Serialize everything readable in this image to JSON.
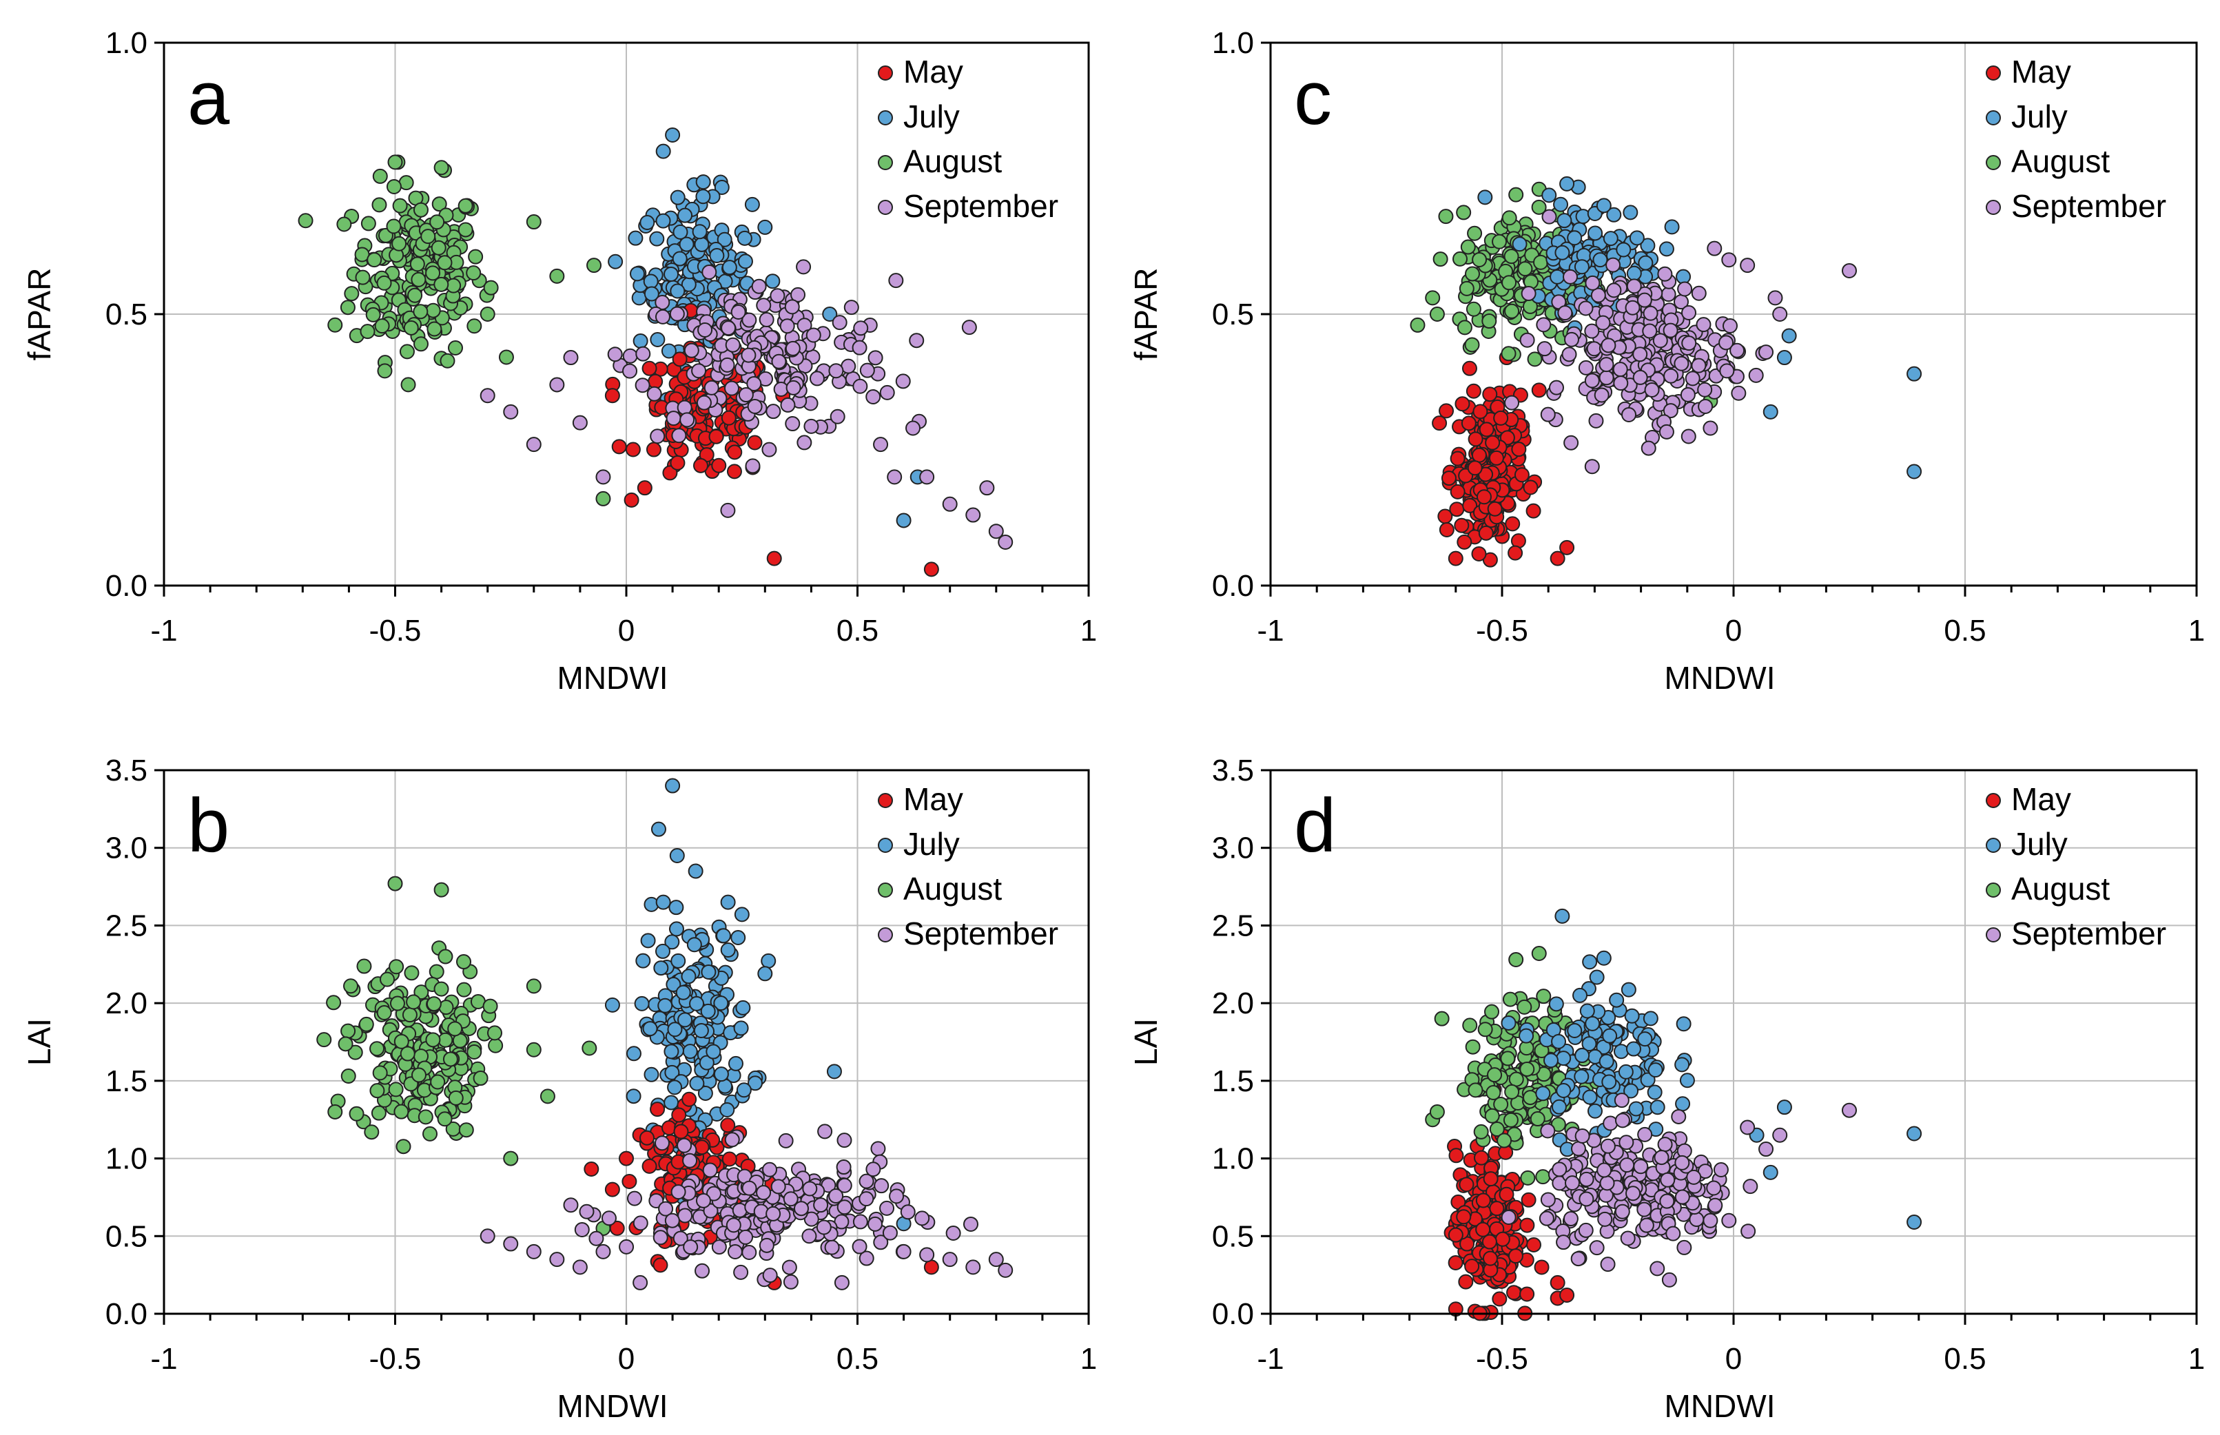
{
  "figure": {
    "description_labels": [
      "a",
      "b",
      "c",
      "d"
    ]
  },
  "legend_colors": {
    "May": "#e31a1c",
    "July": "#5ba4d6",
    "August": "#6fbf6a",
    "September": "#c39bd8",
    "stroke": "#222222"
  },
  "chart_data": [
    {
      "type": "scatter",
      "panel": "a",
      "xlabel": "MNDWI",
      "ylabel": "fAPAR",
      "xlim": [
        -1,
        1
      ],
      "ylim": [
        0,
        1
      ],
      "xticks": [
        "-1",
        "-0.5",
        "0",
        "0.5",
        "1"
      ],
      "yticks": [
        "0.0",
        "0.5",
        "1.0"
      ],
      "ytick_values": [
        0,
        0.5,
        1.0
      ],
      "legend": [
        "May",
        "July",
        "August",
        "September"
      ],
      "legend_position": "top-right",
      "grid": true,
      "series": [
        {
          "name": "May",
          "cx": 0.17,
          "sx": 0.07,
          "cy": 0.31,
          "sy": 0.06,
          "n": 120,
          "extra": [
            [
              0.32,
              0.05
            ],
            [
              0.66,
              0.03
            ],
            [
              -0.03,
              0.35
            ],
            [
              0.05,
              0.4
            ],
            [
              0.04,
              0.18
            ]
          ]
        },
        {
          "name": "July",
          "cx": 0.15,
          "sx": 0.06,
          "cy": 0.58,
          "sy": 0.07,
          "n": 160,
          "extra": [
            [
              0.1,
              0.83
            ],
            [
              0.08,
              0.8
            ],
            [
              0.6,
              0.12
            ],
            [
              0.63,
              0.2
            ],
            [
              0.44,
              0.5
            ],
            [
              0.3,
              0.66
            ],
            [
              0.02,
              0.64
            ]
          ]
        },
        {
          "name": "August",
          "cx": -0.45,
          "sx": 0.07,
          "cy": 0.58,
          "sy": 0.08,
          "n": 200,
          "extra": [
            [
              -0.5,
              0.78
            ],
            [
              -0.4,
              0.77
            ],
            [
              -0.2,
              0.67
            ],
            [
              -0.15,
              0.57
            ],
            [
              -0.07,
              0.59
            ],
            [
              -0.05,
              0.16
            ],
            [
              -0.3,
              0.5
            ],
            [
              -0.63,
              0.48
            ]
          ]
        },
        {
          "name": "September",
          "cx": 0.3,
          "sx": 0.14,
          "cy": 0.42,
          "sy": 0.07,
          "n": 200,
          "extra": [
            [
              0.82,
              0.08
            ],
            [
              0.8,
              0.1
            ],
            [
              0.75,
              0.13
            ],
            [
              0.7,
              0.15
            ],
            [
              0.65,
              0.2
            ],
            [
              0.58,
              0.2
            ],
            [
              0.55,
              0.26
            ],
            [
              -0.25,
              0.32
            ],
            [
              -0.3,
              0.35
            ],
            [
              -0.2,
              0.26
            ],
            [
              -0.15,
              0.37
            ],
            [
              -0.1,
              0.3
            ],
            [
              -0.05,
              0.2
            ],
            [
              0.62,
              0.29
            ],
            [
              0.78,
              0.18
            ],
            [
              -0.12,
              0.42
            ]
          ]
        }
      ]
    },
    {
      "type": "scatter",
      "panel": "b",
      "xlabel": "MNDWI",
      "ylabel": "LAI",
      "xlim": [
        -1,
        1
      ],
      "ylim": [
        0,
        3.5
      ],
      "xticks": [
        "-1",
        "-0.5",
        "0",
        "0.5",
        "1"
      ],
      "yticks": [
        "0.0",
        "0.5",
        "1.0",
        "1.5",
        "2.0",
        "2.5",
        "3.0",
        "3.5"
      ],
      "ytick_values": [
        0,
        0.5,
        1.0,
        1.5,
        2.0,
        2.5,
        3.0,
        3.5
      ],
      "legend": [
        "May",
        "July",
        "August",
        "September"
      ],
      "legend_position": "top-right",
      "grid": true,
      "series": [
        {
          "name": "May",
          "cx": 0.15,
          "sx": 0.06,
          "cy": 0.9,
          "sy": 0.2,
          "n": 120,
          "extra": [
            [
              0.32,
              0.2
            ],
            [
              0.66,
              0.3
            ],
            [
              -0.03,
              0.8
            ],
            [
              0.0,
              1.0
            ],
            [
              0.05,
              0.95
            ]
          ]
        },
        {
          "name": "July",
          "cx": 0.15,
          "sx": 0.06,
          "cy": 1.85,
          "sy": 0.35,
          "n": 170,
          "extra": [
            [
              0.1,
              3.4
            ],
            [
              0.07,
              3.12
            ],
            [
              0.11,
              2.95
            ],
            [
              0.15,
              2.85
            ],
            [
              0.45,
              1.56
            ],
            [
              0.6,
              0.58
            ],
            [
              0.3,
              2.19
            ],
            [
              0.22,
              2.65
            ],
            [
              0.08,
              2.65
            ]
          ]
        },
        {
          "name": "August",
          "cx": -0.45,
          "sx": 0.07,
          "cy": 1.7,
          "sy": 0.28,
          "n": 200,
          "extra": [
            [
              -0.5,
              2.77
            ],
            [
              -0.4,
              2.73
            ],
            [
              -0.2,
              2.11
            ],
            [
              -0.2,
              1.7
            ],
            [
              -0.17,
              1.4
            ],
            [
              -0.08,
              1.71
            ],
            [
              -0.05,
              0.55
            ],
            [
              -0.25,
              1.0
            ],
            [
              -0.63,
              1.3
            ]
          ]
        },
        {
          "name": "September",
          "cx": 0.3,
          "sx": 0.15,
          "cy": 0.65,
          "sy": 0.18,
          "n": 220,
          "extra": [
            [
              0.82,
              0.28
            ],
            [
              0.8,
              0.35
            ],
            [
              0.75,
              0.3
            ],
            [
              0.7,
              0.35
            ],
            [
              0.65,
              0.38
            ],
            [
              0.6,
              0.4
            ],
            [
              -0.3,
              0.5
            ],
            [
              -0.25,
              0.45
            ],
            [
              -0.2,
              0.4
            ],
            [
              -0.15,
              0.35
            ],
            [
              -0.1,
              0.3
            ],
            [
              -0.05,
              0.4
            ],
            [
              0.03,
              0.2
            ],
            [
              -0.12,
              0.7
            ]
          ]
        }
      ]
    },
    {
      "type": "scatter",
      "panel": "c",
      "xlabel": "MNDWI",
      "ylabel": "fAPAR",
      "xlim": [
        -1,
        1
      ],
      "ylim": [
        0,
        1
      ],
      "xticks": [
        "-1",
        "-0.5",
        "0",
        "0.5",
        "1"
      ],
      "yticks": [
        "0.0",
        "0.5",
        "1.0"
      ],
      "ytick_values": [
        0,
        0.5,
        1.0
      ],
      "legend": [
        "May",
        "July",
        "August",
        "September"
      ],
      "legend_position": "top-right",
      "grid": true,
      "series": [
        {
          "name": "May",
          "cx": -0.53,
          "sx": 0.035,
          "cy": 0.21,
          "sy": 0.07,
          "n": 230,
          "extra": [
            [
              -0.38,
              0.05
            ],
            [
              -0.36,
              0.07
            ],
            [
              -0.6,
              0.05
            ],
            [
              -0.57,
              0.4
            ],
            [
              -0.49,
              0.42
            ],
            [
              -0.42,
              0.36
            ]
          ]
        },
        {
          "name": "July",
          "cx": -0.3,
          "sx": 0.07,
          "cy": 0.61,
          "sy": 0.05,
          "n": 110,
          "extra": [
            [
              0.39,
              0.39
            ],
            [
              0.39,
              0.21
            ],
            [
              0.12,
              0.46
            ],
            [
              0.11,
              0.42
            ],
            [
              0.08,
              0.32
            ],
            [
              -0.36,
              0.74
            ],
            [
              -0.28,
              0.7
            ]
          ]
        },
        {
          "name": "August",
          "cx": -0.45,
          "sx": 0.07,
          "cy": 0.57,
          "sy": 0.06,
          "n": 180,
          "extra": [
            [
              -0.65,
              0.53
            ],
            [
              -0.64,
              0.5
            ],
            [
              -0.47,
              0.72
            ],
            [
              -0.42,
              0.73
            ],
            [
              -0.05,
              0.34
            ]
          ]
        },
        {
          "name": "September",
          "cx": -0.2,
          "sx": 0.1,
          "cy": 0.43,
          "sy": 0.07,
          "n": 230,
          "extra": [
            [
              0.25,
              0.58
            ],
            [
              0.1,
              0.5
            ],
            [
              0.09,
              0.53
            ],
            [
              0.07,
              0.43
            ],
            [
              0.03,
              0.59
            ],
            [
              -0.01,
              0.6
            ],
            [
              -0.05,
              0.29
            ]
          ]
        }
      ]
    },
    {
      "type": "scatter",
      "panel": "d",
      "xlabel": "MNDWI",
      "ylabel": "LAI",
      "xlim": [
        -1,
        1
      ],
      "ylim": [
        0,
        3.5
      ],
      "xticks": [
        "-1",
        "-0.5",
        "0",
        "0.5",
        "1"
      ],
      "yticks": [
        "0.0",
        "0.5",
        "1.0",
        "1.5",
        "2.0",
        "2.5",
        "3.0",
        "3.5"
      ],
      "ytick_values": [
        0,
        0.5,
        1.0,
        1.5,
        2.0,
        2.5,
        3.0,
        3.5
      ],
      "legend": [
        "May",
        "July",
        "August",
        "September"
      ],
      "legend_position": "top-right",
      "grid": true,
      "series": [
        {
          "name": "May",
          "cx": -0.53,
          "sx": 0.035,
          "cy": 0.55,
          "sy": 0.25,
          "n": 230,
          "extra": [
            [
              -0.38,
              0.1
            ],
            [
              -0.36,
              0.12
            ],
            [
              -0.38,
              0.2
            ],
            [
              -0.6,
              0.03
            ],
            [
              -0.5,
              1.15
            ]
          ]
        },
        {
          "name": "July",
          "cx": -0.28,
          "sx": 0.07,
          "cy": 1.65,
          "sy": 0.25,
          "n": 130,
          "extra": [
            [
              0.39,
              1.16
            ],
            [
              0.39,
              0.59
            ],
            [
              0.11,
              1.33
            ],
            [
              0.08,
              0.91
            ],
            [
              0.05,
              1.15
            ],
            [
              -0.37,
              2.56
            ],
            [
              -0.28,
              2.29
            ]
          ]
        },
        {
          "name": "August",
          "cx": -0.45,
          "sx": 0.06,
          "cy": 1.55,
          "sy": 0.22,
          "n": 180,
          "extra": [
            [
              -0.65,
              1.25
            ],
            [
              -0.64,
              1.3
            ],
            [
              -0.47,
              2.28
            ],
            [
              -0.42,
              2.32
            ],
            [
              -0.63,
              1.9
            ]
          ]
        },
        {
          "name": "September",
          "cx": -0.2,
          "sx": 0.1,
          "cy": 0.78,
          "sy": 0.18,
          "n": 230,
          "extra": [
            [
              0.25,
              1.31
            ],
            [
              0.1,
              1.15
            ],
            [
              0.07,
              1.06
            ],
            [
              0.03,
              1.2
            ],
            [
              -0.01,
              0.6
            ],
            [
              -0.05,
              0.6
            ]
          ]
        }
      ]
    }
  ]
}
